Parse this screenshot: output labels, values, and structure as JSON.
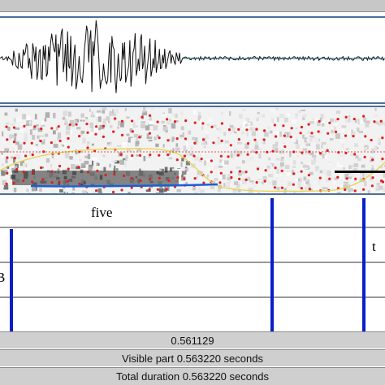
{
  "textgrid": {
    "word_label": "five",
    "right_partial_label": "t",
    "left_partial_label": "B"
  },
  "bottom_bars": {
    "cursor_time": "0.561129",
    "visible_part": "Visible part 0.563220 seconds",
    "total_duration": "Total duration 0.563220 seconds"
  },
  "colors": {
    "pane_border": "#4d6f9c",
    "waveform": "#111111",
    "waveform_tail": "#2b6c7a",
    "formant_dots": "#e0201c",
    "pitch": "#1a5fd6",
    "intensity": "#e8d44a",
    "boundary": "#0a1fc8"
  }
}
